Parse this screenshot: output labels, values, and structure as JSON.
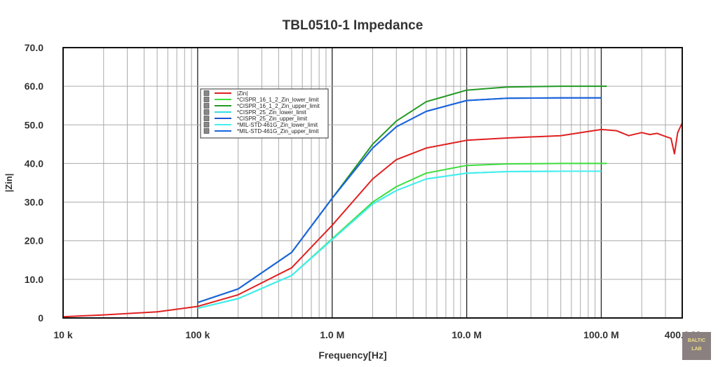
{
  "chart_data": {
    "type": "line",
    "title": "TBL0510-1 Impedance",
    "xlabel": "Frequency[Hz]",
    "ylabel": "|Zin|",
    "xscale": "log",
    "xlim": [
      10000,
      400000000
    ],
    "ylim": [
      0,
      70
    ],
    "grid": true,
    "legend_position": "upper-left-inside",
    "xticks": [
      {
        "v": 10000,
        "label": "10  k"
      },
      {
        "v": 100000,
        "label": "100 k"
      },
      {
        "v": 1000000,
        "label": "1.0 M"
      },
      {
        "v": 10000000,
        "label": "10.0 M"
      },
      {
        "v": 100000000,
        "label": "100.0 M"
      },
      {
        "v": 400000000,
        "label": "400.0 M"
      }
    ],
    "yticks": [
      {
        "v": 0,
        "label": "0"
      },
      {
        "v": 10,
        "label": "10.0"
      },
      {
        "v": 20,
        "label": "20.0"
      },
      {
        "v": 30,
        "label": "30.0"
      },
      {
        "v": 40,
        "label": "40.0"
      },
      {
        "v": 50,
        "label": "50.0"
      },
      {
        "v": 60,
        "label": "60.0"
      },
      {
        "v": 70,
        "label": "70.0"
      }
    ],
    "series": [
      {
        "name": "|Zin|",
        "color": "#e02020",
        "x": [
          10000.0,
          20000.0,
          50000.0,
          100000.0,
          200000.0,
          500000.0,
          1000000.0,
          2000000.0,
          3000000.0,
          5000000.0,
          10000000.0,
          20000000.0,
          50000000.0,
          100000000.0,
          130000000.0,
          160000000.0,
          200000000.0,
          230000000.0,
          260000000.0,
          300000000.0,
          330000000.0,
          350000000.0,
          370000000.0,
          400000000.0
        ],
        "y": [
          0.3,
          0.8,
          1.6,
          3,
          6,
          13,
          24,
          36,
          41,
          44,
          46,
          46.6,
          47.2,
          48.8,
          48.5,
          47.2,
          48,
          47.5,
          47.8,
          47,
          46.5,
          42.5,
          48,
          50.5
        ]
      },
      {
        "name": "*CISPR_16_1_2_Zin_lower_limit",
        "color": "#3ddd3d",
        "x": [
          100000.0,
          200000.0,
          500000.0,
          1000000.0,
          2000000.0,
          3000000.0,
          5000000.0,
          10000000.0,
          20000000.0,
          50000000.0,
          110000000.0
        ],
        "y": [
          2.5,
          5,
          11,
          20.5,
          30,
          34,
          37.5,
          39.5,
          39.9,
          40,
          40
        ]
      },
      {
        "name": "*CISPR_16_1_2_Zin_upper_limit",
        "color": "#229922",
        "x": [
          100000.0,
          200000.0,
          500000.0,
          1000000.0,
          2000000.0,
          3000000.0,
          5000000.0,
          10000000.0,
          20000000.0,
          50000000.0,
          110000000.0
        ],
        "y": [
          4,
          7.5,
          17,
          31,
          45,
          51,
          56,
          59,
          59.8,
          60,
          60
        ]
      },
      {
        "name": "*CISPR_25_Zin_lower_limit",
        "color": "#33dddd",
        "x": [
          100000.0,
          200000.0,
          500000.0,
          1000000.0,
          2000000.0,
          3000000.0,
          5000000.0,
          10000000.0,
          20000000.0,
          50000000.0,
          100000000.0
        ],
        "y": [
          2.5,
          5,
          11,
          20.3,
          29.5,
          33,
          36,
          37.5,
          37.9,
          38,
          38
        ]
      },
      {
        "name": "*CISPR_25_Zin_upper_limit",
        "color": "#2255cc",
        "x": [
          100000.0,
          200000.0,
          500000.0,
          1000000.0,
          2000000.0,
          3000000.0,
          5000000.0,
          10000000.0,
          20000000.0,
          50000000.0,
          100000000.0
        ],
        "y": [
          4,
          7.5,
          17,
          31,
          44,
          49.5,
          53.5,
          56.3,
          56.9,
          57,
          57
        ]
      },
      {
        "name": "*MIL-STD-461G_Zin_lower_limit",
        "color": "#44eeee",
        "x": [
          100000.0,
          200000.0,
          500000.0,
          1000000.0,
          2000000.0,
          3000000.0,
          5000000.0,
          10000000.0,
          20000000.0,
          50000000.0,
          100000000.0
        ],
        "y": [
          2.5,
          5,
          11,
          20.3,
          29.5,
          33,
          36,
          37.5,
          37.9,
          38,
          38
        ]
      },
      {
        "name": "*MIL-STD-461G_Zin_upper_limit",
        "color": "#1a66dd",
        "x": [
          100000.0,
          200000.0,
          500000.0,
          1000000.0,
          2000000.0,
          3000000.0,
          5000000.0,
          10000000.0,
          20000000.0,
          50000000.0,
          100000000.0
        ],
        "y": [
          4,
          7.5,
          17,
          31,
          44,
          49.5,
          53.5,
          56.3,
          56.9,
          57,
          57
        ]
      }
    ]
  },
  "logo": {
    "line1": "BALTIC",
    "line2": "LAB"
  }
}
